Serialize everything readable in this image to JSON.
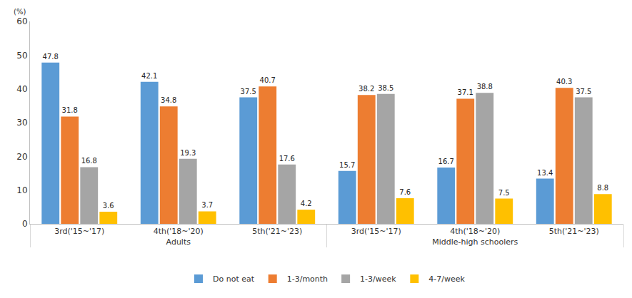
{
  "chart_data": {
    "type": "bar",
    "y_label": "(%)",
    "categories": [
      "3rd('15~'17)",
      "4th('18~'20)",
      "5th('21~'23)",
      "3rd('15~'17)",
      "4th('18~'20)",
      "5th('21~'23)"
    ],
    "category_groups": [
      "Adults",
      "Adults",
      "Adults",
      "Middle-high schoolers",
      "Middle-high schoolers",
      "Middle-high schoolers"
    ],
    "series": [
      {
        "name": "Do not eat",
        "color": "#5b9bd5",
        "values": [
          47.8,
          42.1,
          37.5,
          15.7,
          16.7,
          13.4
        ]
      },
      {
        "name": "1-3/month",
        "color": "#ed7d31",
        "values": [
          31.8,
          34.8,
          40.7,
          38.2,
          37.1,
          40.3
        ]
      },
      {
        "name": "1-3/week",
        "color": "#a5a5a5",
        "values": [
          16.8,
          19.3,
          17.6,
          38.5,
          38.8,
          37.5
        ]
      },
      {
        "name": "4-7/week",
        "color": "#ffc000",
        "values": [
          3.6,
          3.7,
          4.2,
          7.6,
          7.5,
          8.8
        ]
      }
    ],
    "ylim": [
      0,
      60
    ],
    "yticks": [
      0,
      10,
      20,
      30,
      40,
      50,
      60
    ],
    "grid": false,
    "legend": "bottom",
    "data_labels": true
  }
}
